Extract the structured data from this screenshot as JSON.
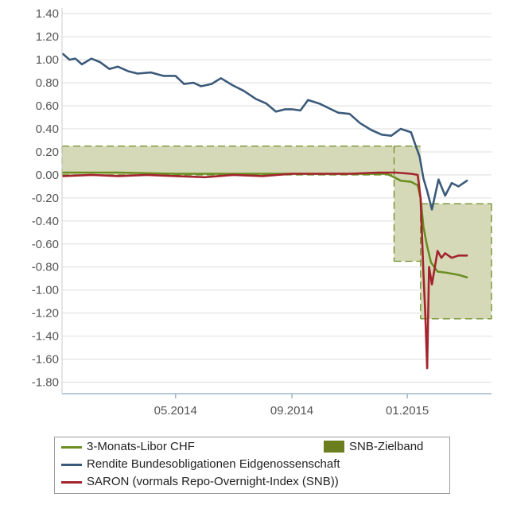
{
  "chart_data": {
    "type": "line",
    "title": "",
    "xlabel": "",
    "ylabel": "",
    "ylim": [
      -1.9,
      1.45
    ],
    "yticks": [
      "1.40",
      "1.20",
      "1.00",
      "0.80",
      "0.60",
      "0.40",
      "0.20",
      "0.00",
      "-0.20",
      "-0.40",
      "-0.60",
      "-0.80",
      "-1.00",
      "-1.20",
      "-1.40",
      "-1.60",
      "-1.80"
    ],
    "xlim": [
      "2014-01-01",
      "2015-03-31"
    ],
    "xticks": [
      {
        "date": "2014-05-01",
        "label": "05.2014"
      },
      {
        "date": "2014-09-01",
        "label": "09.2014"
      },
      {
        "date": "2015-01-01",
        "label": "01.2015"
      }
    ],
    "grid": "horizontal",
    "legend_position": "bottom",
    "colors": {
      "libor": "#6b8e23",
      "band_fill": "#d6d9b8",
      "band_edge": "#6b8e23",
      "rendite": "#3b5a7a",
      "saron": "#a3242d",
      "legend_band": "#6b7f1f"
    },
    "band": {
      "name": "SNB-Zielband",
      "segments": [
        {
          "from": "2014-01-01",
          "to": "2014-12-18",
          "low": 0.0,
          "high": 0.25
        },
        {
          "from": "2014-12-18",
          "to": "2015-01-15",
          "low": -0.75,
          "high": 0.25
        },
        {
          "from": "2015-01-15",
          "to": "2015-03-31",
          "low": -1.25,
          "high": -0.25
        }
      ]
    },
    "series": [
      {
        "key": "rendite",
        "name": "Rendite Bundesobligationen Eidgenossenschaft",
        "points": [
          [
            "2014-01-02",
            1.05
          ],
          [
            "2014-01-09",
            1.0
          ],
          [
            "2014-01-15",
            1.01
          ],
          [
            "2014-01-22",
            0.96
          ],
          [
            "2014-02-01",
            1.01
          ],
          [
            "2014-02-10",
            0.98
          ],
          [
            "2014-02-20",
            0.92
          ],
          [
            "2014-03-01",
            0.94
          ],
          [
            "2014-03-12",
            0.9
          ],
          [
            "2014-03-22",
            0.88
          ],
          [
            "2014-04-05",
            0.89
          ],
          [
            "2014-04-18",
            0.86
          ],
          [
            "2014-05-01",
            0.86
          ],
          [
            "2014-05-10",
            0.79
          ],
          [
            "2014-05-20",
            0.8
          ],
          [
            "2014-05-28",
            0.77
          ],
          [
            "2014-06-08",
            0.79
          ],
          [
            "2014-06-18",
            0.84
          ],
          [
            "2014-06-30",
            0.78
          ],
          [
            "2014-07-12",
            0.73
          ],
          [
            "2014-07-25",
            0.66
          ],
          [
            "2014-08-05",
            0.62
          ],
          [
            "2014-08-15",
            0.55
          ],
          [
            "2014-08-25",
            0.57
          ],
          [
            "2014-09-01",
            0.57
          ],
          [
            "2014-09-10",
            0.56
          ],
          [
            "2014-09-18",
            0.65
          ],
          [
            "2014-09-30",
            0.62
          ],
          [
            "2014-10-10",
            0.58
          ],
          [
            "2014-10-20",
            0.54
          ],
          [
            "2014-11-01",
            0.53
          ],
          [
            "2014-11-12",
            0.45
          ],
          [
            "2014-11-24",
            0.39
          ],
          [
            "2014-12-05",
            0.35
          ],
          [
            "2014-12-15",
            0.34
          ],
          [
            "2014-12-25",
            0.4
          ],
          [
            "2015-01-05",
            0.37
          ],
          [
            "2015-01-10",
            0.25
          ],
          [
            "2015-01-14",
            0.16
          ],
          [
            "2015-01-18",
            -0.03
          ],
          [
            "2015-01-22",
            -0.14
          ],
          [
            "2015-01-27",
            -0.3
          ],
          [
            "2015-02-03",
            -0.04
          ],
          [
            "2015-02-10",
            -0.18
          ],
          [
            "2015-02-17",
            -0.07
          ],
          [
            "2015-02-24",
            -0.1
          ],
          [
            "2015-03-05",
            -0.05
          ]
        ]
      },
      {
        "key": "libor",
        "name": "3-Monats-Libor CHF",
        "points": [
          [
            "2014-01-02",
            0.02
          ],
          [
            "2014-03-01",
            0.02
          ],
          [
            "2014-05-01",
            0.01
          ],
          [
            "2014-07-01",
            0.01
          ],
          [
            "2014-09-01",
            0.01
          ],
          [
            "2014-11-01",
            0.01
          ],
          [
            "2014-12-10",
            0.01
          ],
          [
            "2014-12-18",
            -0.02
          ],
          [
            "2014-12-25",
            -0.05
          ],
          [
            "2015-01-05",
            -0.06
          ],
          [
            "2015-01-12",
            -0.09
          ],
          [
            "2015-01-15",
            -0.2
          ],
          [
            "2015-01-18",
            -0.45
          ],
          [
            "2015-01-22",
            -0.62
          ],
          [
            "2015-01-26",
            -0.76
          ],
          [
            "2015-02-02",
            -0.84
          ],
          [
            "2015-02-12",
            -0.85
          ],
          [
            "2015-02-25",
            -0.87
          ],
          [
            "2015-03-05",
            -0.89
          ]
        ]
      },
      {
        "key": "saron",
        "name": "SARON (vormals Repo-Overnight-Index (SNB))",
        "points": [
          [
            "2014-01-02",
            -0.01
          ],
          [
            "2014-02-01",
            0.0
          ],
          [
            "2014-03-01",
            -0.01
          ],
          [
            "2014-04-01",
            0.0
          ],
          [
            "2014-05-01",
            -0.01
          ],
          [
            "2014-06-01",
            -0.02
          ],
          [
            "2014-07-01",
            0.0
          ],
          [
            "2014-08-01",
            -0.01
          ],
          [
            "2014-09-01",
            0.01
          ],
          [
            "2014-10-01",
            0.01
          ],
          [
            "2014-11-01",
            0.01
          ],
          [
            "2014-12-01",
            0.02
          ],
          [
            "2014-12-20",
            0.02
          ],
          [
            "2015-01-05",
            0.01
          ],
          [
            "2015-01-12",
            0.0
          ],
          [
            "2015-01-15",
            -0.2
          ],
          [
            "2015-01-18",
            -0.85
          ],
          [
            "2015-01-20",
            -1.2
          ],
          [
            "2015-01-22",
            -1.68
          ],
          [
            "2015-01-24",
            -0.8
          ],
          [
            "2015-01-27",
            -0.95
          ],
          [
            "2015-02-02",
            -0.66
          ],
          [
            "2015-02-06",
            -0.72
          ],
          [
            "2015-02-10",
            -0.68
          ],
          [
            "2015-02-17",
            -0.72
          ],
          [
            "2015-02-24",
            -0.7
          ],
          [
            "2015-03-05",
            -0.7
          ]
        ]
      }
    ]
  },
  "legend": {
    "libor": "3-Monats-Libor CHF",
    "band": "SNB-Zielband",
    "rendite": "Rendite Bundesobligationen Eidgenossenschaft",
    "saron": "SARON (vormals Repo-Overnight-Index (SNB))"
  }
}
